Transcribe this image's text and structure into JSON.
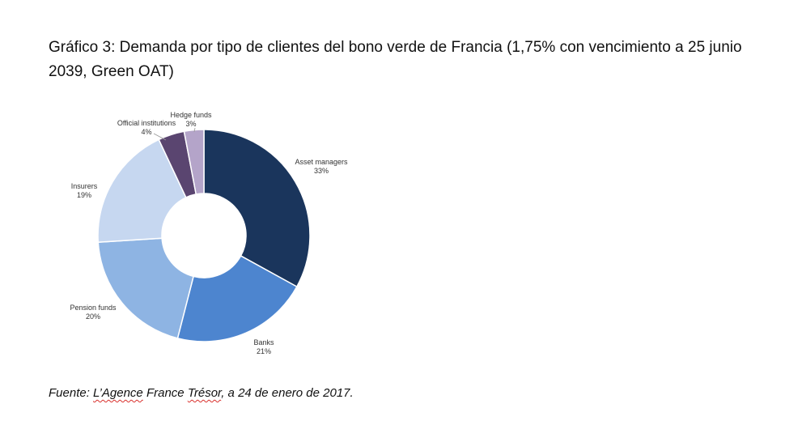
{
  "title": "Gráfico 3: Demanda por tipo de clientes del bono verde de Francia (1,75% con vencimiento a 25 junio 2039, Green OAT)",
  "source": {
    "prefix": "Fuente: ",
    "agency_part1": "L’Agence",
    "middle": " France ",
    "agency_part2": "Trésor",
    "suffix": ", a 24 de enero de 2017."
  },
  "chart_data": {
    "type": "pie",
    "donut": true,
    "slices": [
      {
        "label": "Asset managers",
        "value": 33,
        "value_label": "33%",
        "color": "#1a355c"
      },
      {
        "label": "Banks",
        "value": 21,
        "value_label": "21%",
        "color": "#4d85cf"
      },
      {
        "label": "Pension funds",
        "value": 20,
        "value_label": "20%",
        "color": "#8eb4e3"
      },
      {
        "label": "Insurers",
        "value": 19,
        "value_label": "19%",
        "color": "#c6d7f0"
      },
      {
        "label": "Official institutions",
        "value": 4,
        "value_label": "4%",
        "color": "#5a4570"
      },
      {
        "label": "Hedge funds",
        "value": 3,
        "value_label": "3%",
        "color": "#b4a4c9"
      }
    ]
  }
}
